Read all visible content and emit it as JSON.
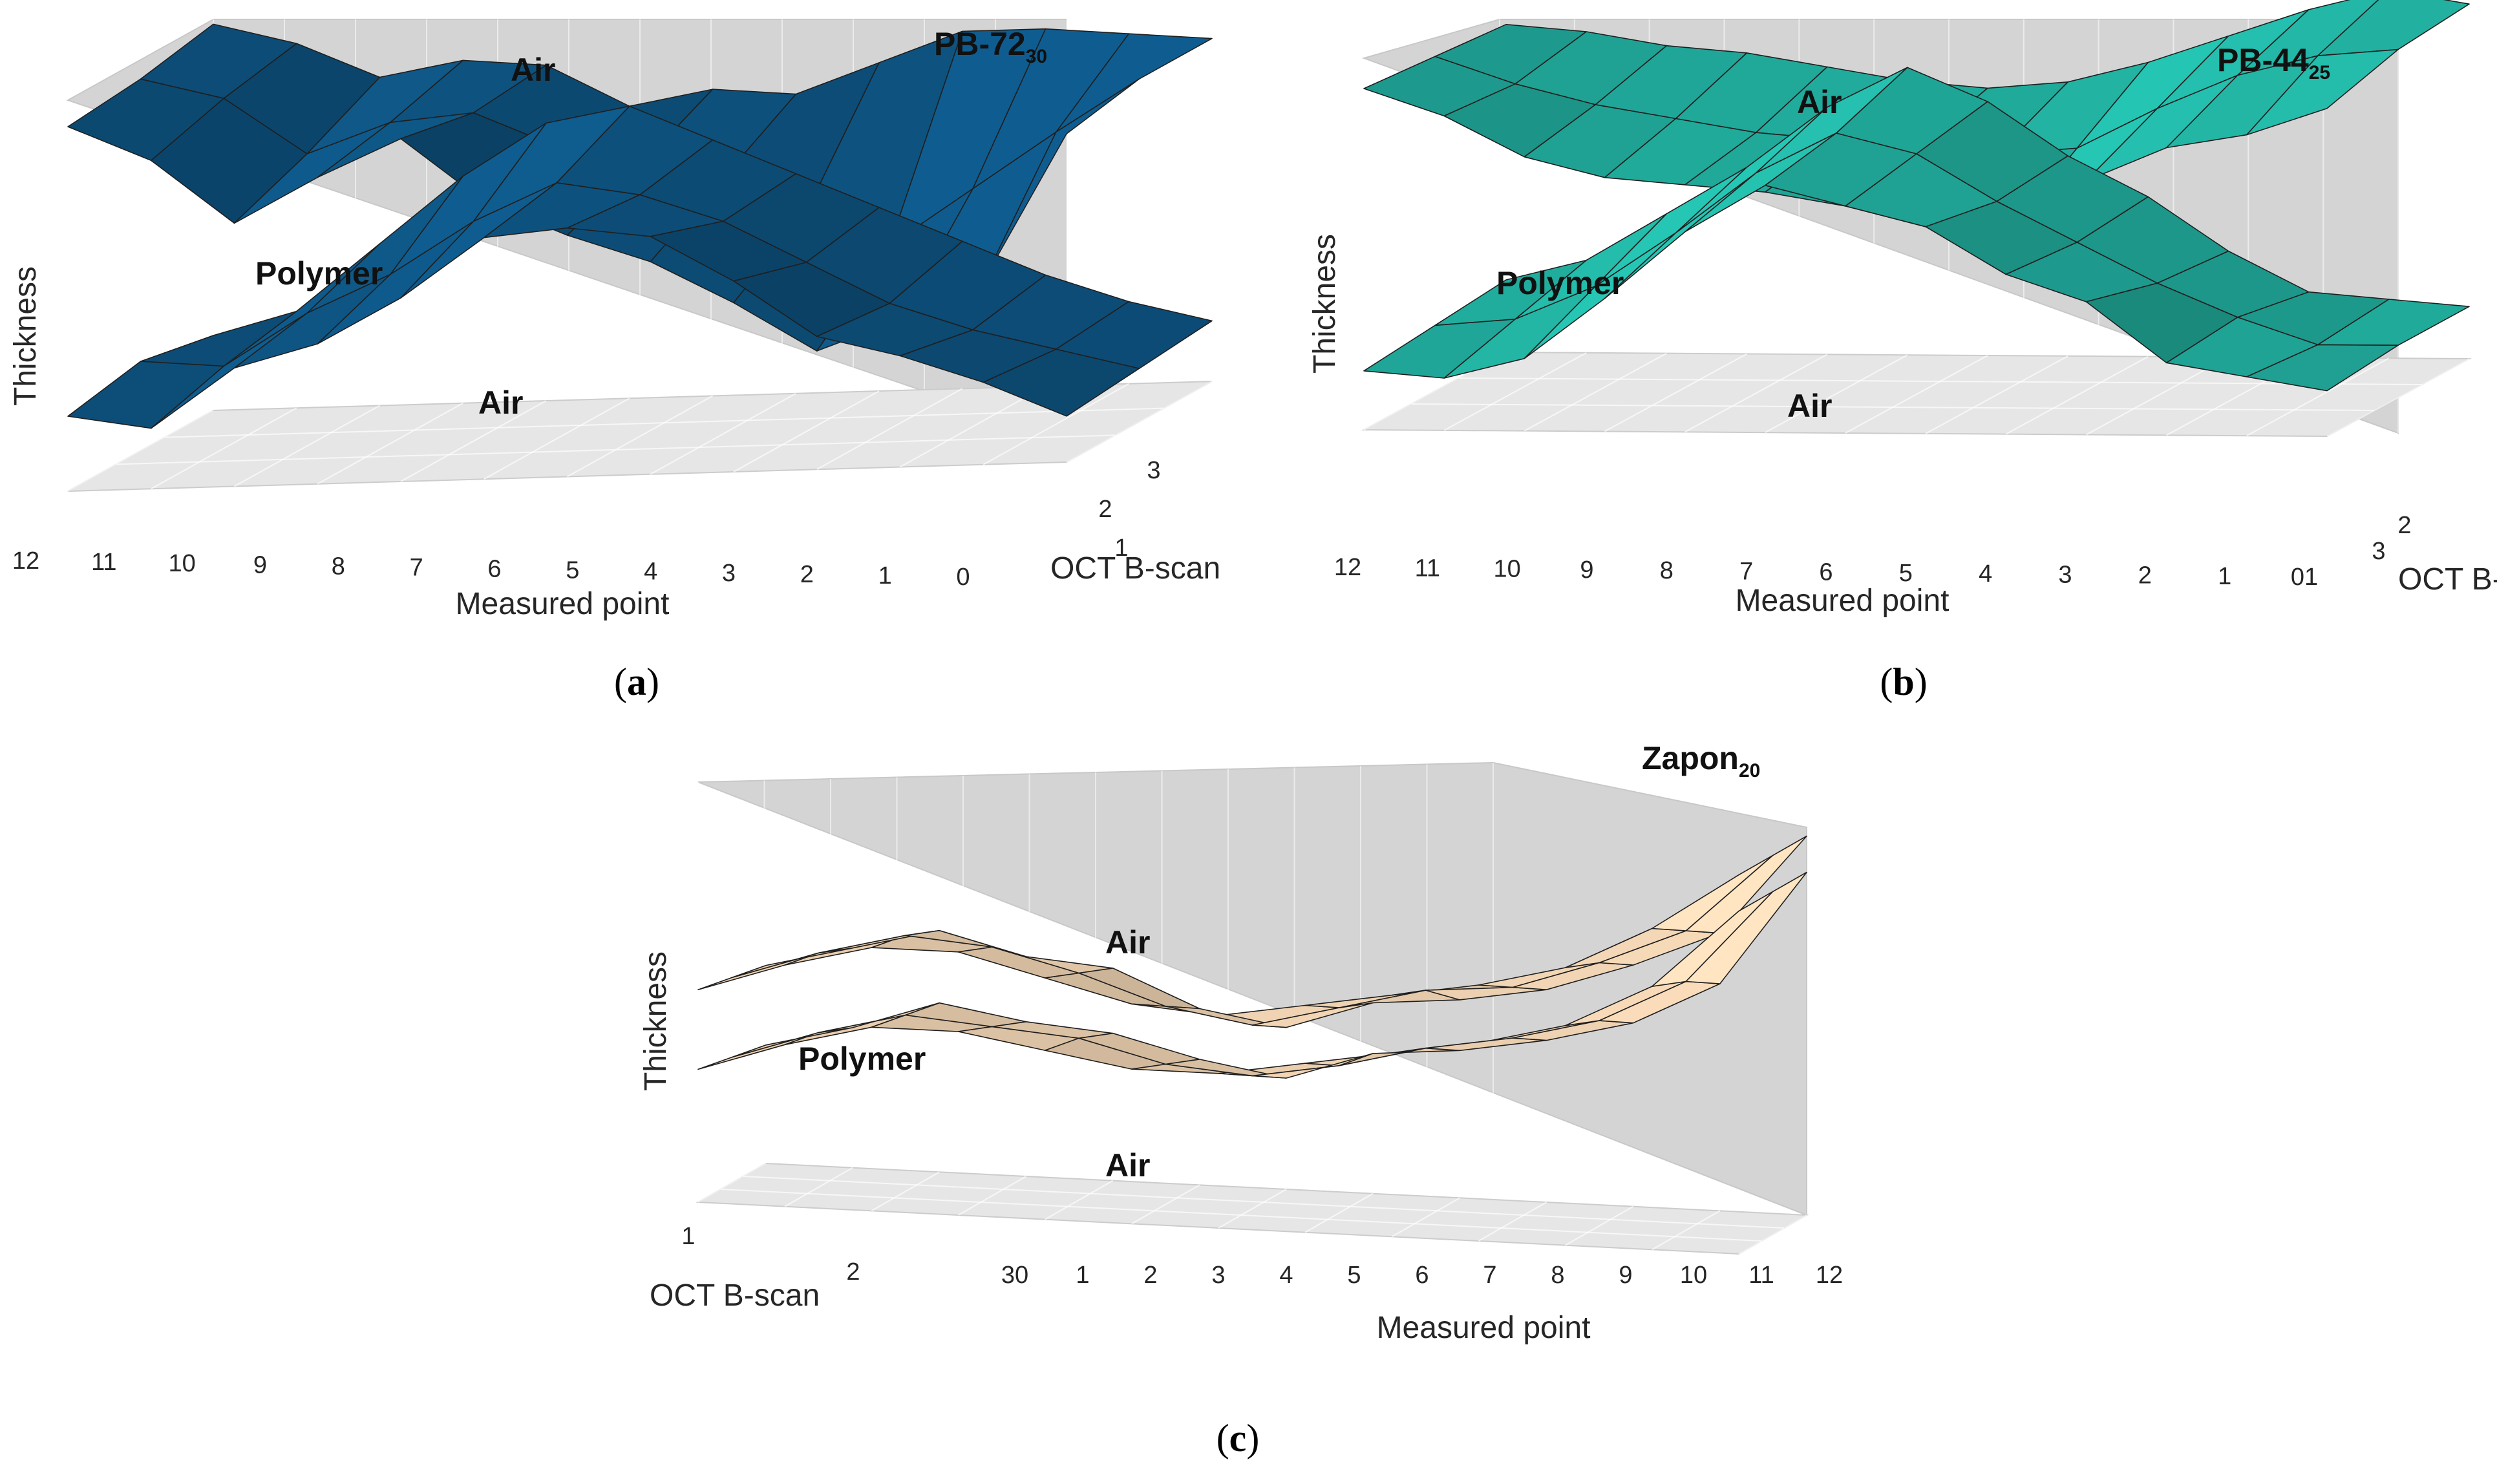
{
  "chart_data": [
    {
      "type": "surface",
      "panel": "a",
      "caption": {
        "open": "(",
        "letter": "a",
        "close": ")"
      },
      "title": {
        "main": "PB-72",
        "sub": "30"
      },
      "color": "#0d4f7a",
      "xlabel": "Measured point",
      "ylabel": "OCT B-scan",
      "zlabel": "Thickness",
      "x_ticks": [
        "12",
        "11",
        "10",
        "9",
        "8",
        "7",
        "6",
        "5",
        "4",
        "3",
        "2",
        "1",
        "0"
      ],
      "y_ticks": [
        "1",
        "2",
        "3"
      ],
      "region_labels": {
        "top": "Air",
        "middle": "Polymer",
        "bottom": "Air"
      },
      "points": [
        0,
        1,
        2,
        3,
        4,
        5,
        6,
        7,
        8,
        9,
        10,
        11,
        12
      ],
      "bscans": [
        1,
        2,
        3
      ],
      "upper_surface": [
        [
          0.9,
          0.8,
          0.62,
          0.74,
          0.84,
          0.66,
          0.56,
          0.48,
          0.36,
          0.22,
          0.3,
          0.4,
          0.8
        ],
        [
          0.92,
          0.86,
          0.7,
          0.78,
          0.8,
          0.7,
          0.64,
          0.6,
          0.5,
          0.4,
          0.55,
          0.7,
          0.84
        ],
        [
          0.96,
          0.9,
          0.8,
          0.84,
          0.82,
          0.7,
          0.74,
          0.72,
          0.8,
          0.88,
          0.88,
          0.86,
          0.84
        ]
      ],
      "lower_surface": [
        [
          0.1,
          0.06,
          0.22,
          0.28,
          0.4,
          0.56,
          0.58,
          0.55,
          0.42,
          0.26,
          0.2,
          0.12,
          0.02
        ],
        [
          0.14,
          0.12,
          0.26,
          0.36,
          0.5,
          0.6,
          0.56,
          0.48,
          0.36,
          0.24,
          0.16,
          0.1,
          0.04
        ],
        [
          0.1,
          0.16,
          0.34,
          0.52,
          0.66,
          0.7,
          0.6,
          0.5,
          0.4,
          0.3,
          0.2,
          0.12,
          0.06
        ]
      ]
    },
    {
      "type": "surface",
      "panel": "b",
      "caption": {
        "open": "(",
        "letter": "b",
        "close": ")"
      },
      "title": {
        "main": "PB-44",
        "sub": "25"
      },
      "color": "#20a899",
      "xlabel": "Measured point",
      "ylabel": "OCT B-scan",
      "zlabel": "Thickness",
      "x_ticks": [
        "12",
        "11",
        "10",
        "9",
        "8",
        "7",
        "6",
        "5",
        "4",
        "3",
        "2",
        "1",
        "01"
      ],
      "y_ticks": [
        "2",
        "3"
      ],
      "region_labels": {
        "top": "Air",
        "middle": "Polymer",
        "bottom": "Air"
      },
      "points": [
        0,
        1,
        2,
        3,
        4,
        5,
        6,
        7,
        8,
        9,
        10,
        11,
        12
      ],
      "bscans": [
        1,
        2,
        3
      ],
      "upper_surface": [
        [
          0.9,
          0.82,
          0.7,
          0.64,
          0.62,
          0.6,
          0.56,
          0.5,
          0.48,
          0.64,
          0.74,
          0.78,
          0.86
        ],
        [
          0.88,
          0.8,
          0.74,
          0.7,
          0.66,
          0.64,
          0.62,
          0.6,
          0.62,
          0.74,
          0.84,
          0.9,
          0.92
        ],
        [
          0.86,
          0.84,
          0.8,
          0.78,
          0.74,
          0.7,
          0.68,
          0.7,
          0.76,
          0.84,
          0.92,
          0.98,
          0.94
        ]
      ],
      "lower_surface": [
        [
          0.06,
          0.04,
          0.1,
          0.28,
          0.48,
          0.62,
          0.56,
          0.5,
          0.36,
          0.28,
          0.1,
          0.06,
          0.02
        ],
        [
          0.08,
          0.1,
          0.2,
          0.36,
          0.54,
          0.66,
          0.6,
          0.46,
          0.34,
          0.22,
          0.12,
          0.04,
          0.04
        ],
        [
          0.1,
          0.16,
          0.3,
          0.44,
          0.62,
          0.74,
          0.64,
          0.48,
          0.36,
          0.2,
          0.08,
          0.06,
          0.04
        ]
      ]
    },
    {
      "type": "surface",
      "panel": "c",
      "caption": {
        "open": "(",
        "letter": "c",
        "close": ")"
      },
      "title": {
        "main": "Zapon",
        "sub": "20"
      },
      "color": "#dcc2a4",
      "xlabel": "Measured point",
      "ylabel": "OCT B-scan",
      "zlabel": "Thickness",
      "x_ticks": [
        "30",
        "1",
        "2",
        "3",
        "4",
        "5",
        "6",
        "7",
        "8",
        "9",
        "10",
        "11",
        "12"
      ],
      "y_ticks": [
        "1",
        "2"
      ],
      "region_labels": {
        "top": "Air",
        "middle": "Polymer",
        "bottom": "Air"
      },
      "points": [
        0,
        1,
        2,
        3,
        4,
        5,
        6,
        7,
        8,
        9,
        10,
        11,
        12
      ],
      "bscans": [
        1,
        2,
        3
      ],
      "upper_surface": [
        [
          0.44,
          0.5,
          0.56,
          0.5,
          0.48,
          0.38,
          0.34,
          0.42,
          0.44,
          0.48,
          0.56,
          0.66,
          0.94
        ],
        [
          0.46,
          0.54,
          0.6,
          0.58,
          0.52,
          0.44,
          0.4,
          0.46,
          0.52,
          0.54,
          0.62,
          0.72,
          0.94
        ],
        [
          0.48,
          0.56,
          0.62,
          0.62,
          0.56,
          0.5,
          0.48,
          0.52,
          0.56,
          0.6,
          0.66,
          0.78,
          0.94
        ]
      ],
      "lower_surface": [
        [
          0.22,
          0.28,
          0.36,
          0.32,
          0.3,
          0.24,
          0.2,
          0.28,
          0.3,
          0.34,
          0.4,
          0.52,
          0.84
        ],
        [
          0.24,
          0.32,
          0.38,
          0.36,
          0.34,
          0.28,
          0.26,
          0.3,
          0.36,
          0.4,
          0.46,
          0.58,
          0.84
        ],
        [
          0.26,
          0.34,
          0.4,
          0.4,
          0.36,
          0.32,
          0.32,
          0.36,
          0.4,
          0.44,
          0.5,
          0.62,
          0.84
        ]
      ]
    }
  ]
}
